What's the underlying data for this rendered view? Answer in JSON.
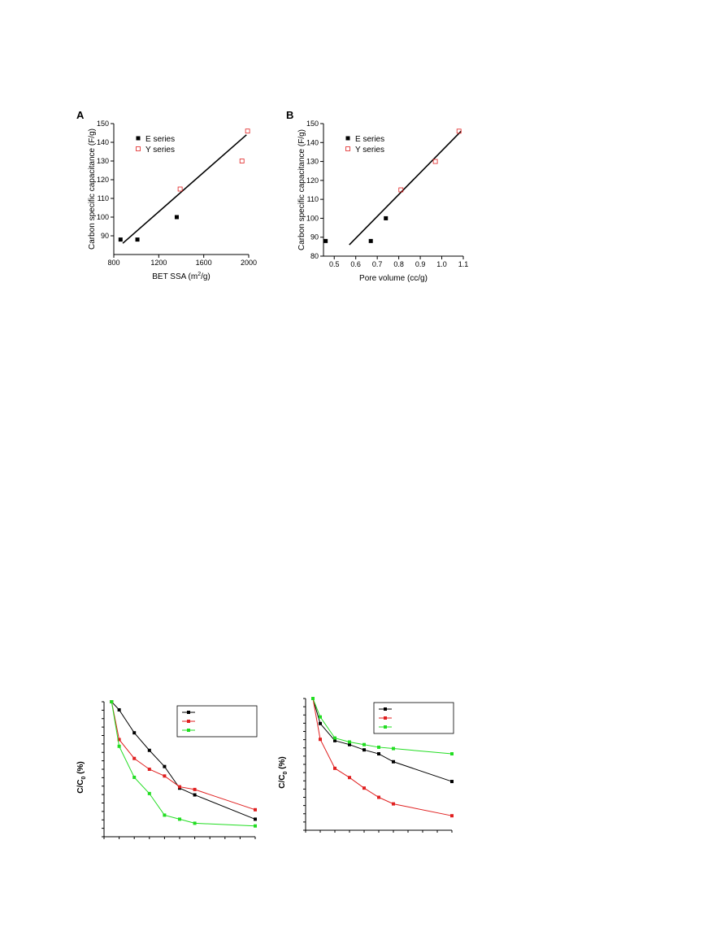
{
  "chart_data": [
    {
      "id": "A",
      "panel_label": "A",
      "type": "scatter",
      "xlabel_main": "BET SSA (m",
      "xlabel_sup": "2",
      "xlabel_tail": "/g)",
      "ylabel": "Carbon specific capacitance (F/g)",
      "xlim": [
        800,
        2000
      ],
      "ylim": [
        80,
        150
      ],
      "xticks": [
        800,
        1200,
        1600,
        2000
      ],
      "yticks": [
        90,
        100,
        110,
        120,
        130,
        140,
        150
      ],
      "legend_position": "top-left",
      "series": [
        {
          "name": "E series",
          "marker": "filled-square",
          "color": "#000000",
          "x": [
            860,
            1010,
            1360
          ],
          "y": [
            88,
            88,
            100
          ]
        },
        {
          "name": "Y series",
          "marker": "open-square",
          "color": "#e02020",
          "x": [
            1390,
            1940,
            1990
          ],
          "y": [
            115,
            130,
            146
          ]
        }
      ],
      "fit_line": {
        "x": [
          880,
          1980
        ],
        "y": [
          86,
          144
        ]
      }
    },
    {
      "id": "B",
      "panel_label": "B",
      "type": "scatter",
      "xlabel_main": "Pore volume (cc/g)",
      "xlabel_sup": "",
      "xlabel_tail": "",
      "ylabel": "Carbon specific capacitance (F/g)",
      "xlim": [
        0.45,
        1.1
      ],
      "ylim": [
        80,
        150
      ],
      "xticks": [
        0.5,
        0.6,
        0.7,
        0.8,
        0.9,
        1.0,
        1.1
      ],
      "xtick_labels": [
        "0.5",
        "0.6",
        "0.7",
        "0.8",
        "0.9",
        "1.0",
        "1.1"
      ],
      "yticks": [
        80,
        90,
        100,
        110,
        120,
        130,
        140,
        150
      ],
      "legend_position": "top-left",
      "series": [
        {
          "name": "E series",
          "marker": "filled-square",
          "color": "#000000",
          "x": [
            0.46,
            0.67,
            0.74
          ],
          "y": [
            88,
            88,
            100
          ]
        },
        {
          "name": "Y series",
          "marker": "open-square",
          "color": "#e02020",
          "x": [
            0.81,
            0.97,
            1.08
          ],
          "y": [
            115,
            130,
            146
          ]
        }
      ],
      "fit_line": {
        "x": [
          0.57,
          1.09
        ],
        "y": [
          86,
          146
        ]
      }
    },
    {
      "id": "C",
      "type": "line",
      "ylabel_main": "C/C",
      "ylabel_sub": "0",
      "ylabel_tail": " (%)",
      "xlim": [
        0,
        10
      ],
      "ylim": [
        0,
        100
      ],
      "xtick_count": 10,
      "ytick_count": 16,
      "legend_position": "top-right",
      "series": [
        {
          "color": "#000000",
          "x": [
            0.5,
            1.0,
            2.0,
            3.0,
            4.0,
            5.0,
            6.0,
            10.0
          ],
          "y": [
            100,
            94,
            77,
            64,
            52,
            36,
            31,
            13
          ]
        },
        {
          "color": "#e02020",
          "x": [
            0.5,
            1.0,
            2.0,
            3.0,
            4.0,
            5.0,
            6.0,
            10.0
          ],
          "y": [
            100,
            72,
            58,
            50,
            45,
            37,
            35,
            20
          ]
        },
        {
          "color": "#22dd22",
          "x": [
            0.5,
            1.0,
            2.0,
            3.0,
            4.0,
            5.0,
            6.0,
            10.0
          ],
          "y": [
            100,
            67,
            44,
            32,
            16,
            13,
            10,
            8
          ]
        }
      ]
    },
    {
      "id": "D",
      "type": "line",
      "ylabel_main": "C/C",
      "ylabel_sub": "0",
      "ylabel_tail": " (%)",
      "xlim": [
        0,
        10
      ],
      "ylim": [
        0,
        100
      ],
      "xtick_count": 10,
      "ytick_count": 16,
      "legend_position": "top-right",
      "series": [
        {
          "color": "#000000",
          "x": [
            0.5,
            1.0,
            2.0,
            3.0,
            4.0,
            5.0,
            6.0,
            10.0
          ],
          "y": [
            100,
            81,
            68,
            65,
            61,
            58,
            52,
            37
          ]
        },
        {
          "color": "#e02020",
          "x": [
            0.5,
            1.0,
            2.0,
            3.0,
            4.0,
            5.0,
            6.0,
            10.0
          ],
          "y": [
            100,
            69,
            47,
            40,
            32,
            25,
            20,
            11
          ]
        },
        {
          "color": "#22dd22",
          "x": [
            0.5,
            1.0,
            2.0,
            3.0,
            4.0,
            5.0,
            6.0,
            10.0
          ],
          "y": [
            100,
            86,
            70,
            67,
            65,
            63,
            62,
            58
          ]
        }
      ]
    }
  ]
}
